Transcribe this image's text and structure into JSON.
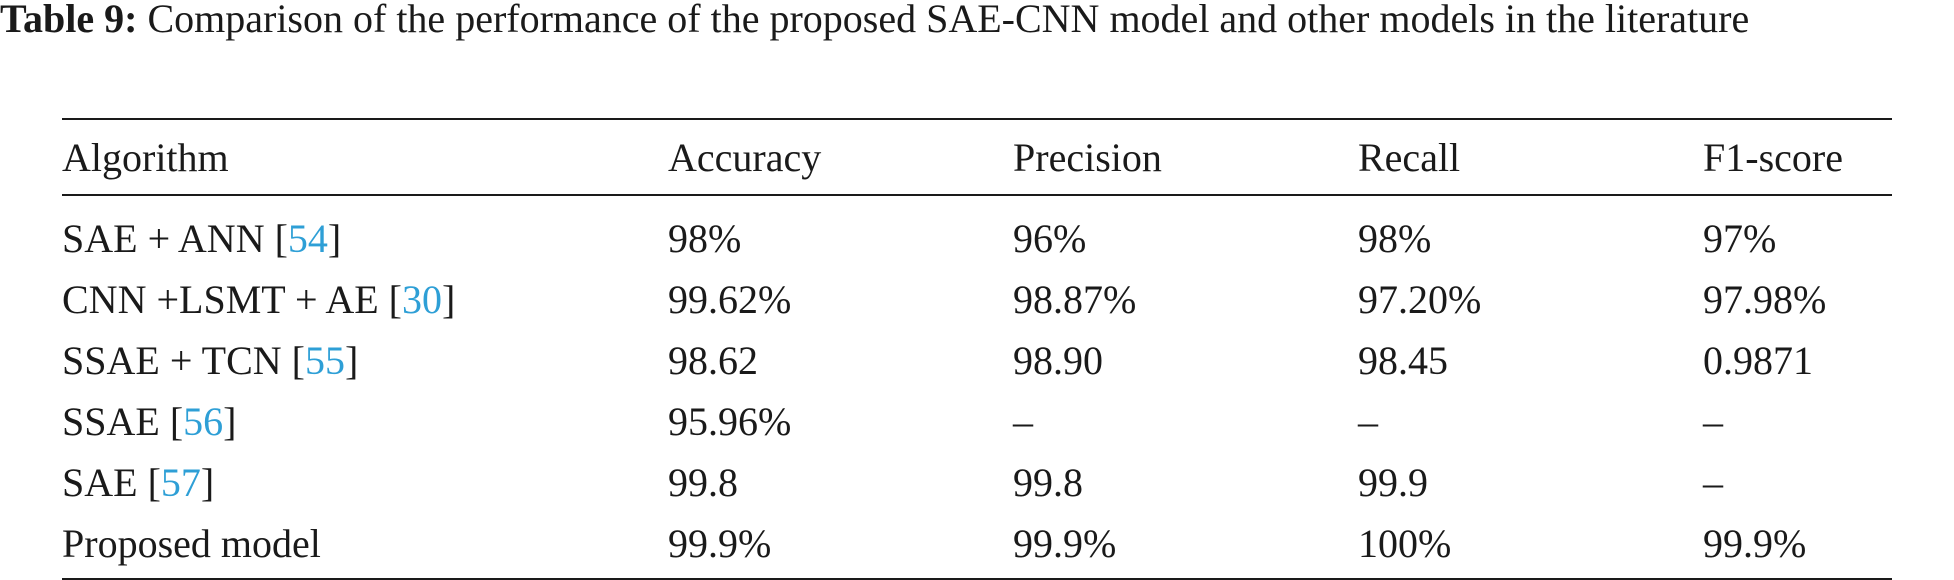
{
  "caption": {
    "label": "Table 9:",
    "text": " Comparison of the performance of the proposed SAE-CNN model and other models in the literature"
  },
  "table": {
    "headers": [
      "Algorithm",
      "Accuracy",
      "Precision",
      "Recall",
      "F1-score"
    ],
    "rows": [
      {
        "name": "SAE + ANN [",
        "ref": "54",
        "close": "]",
        "values": [
          "98%",
          "96%",
          "98%",
          "97%"
        ]
      },
      {
        "name": "CNN +LSMT + AE [",
        "ref": "30",
        "close": "]",
        "values": [
          "99.62%",
          "98.87%",
          "97.20%",
          "97.98%"
        ]
      },
      {
        "name": "SSAE + TCN [",
        "ref": "55",
        "close": "]",
        "values": [
          "98.62",
          "98.90",
          "98.45",
          "0.9871"
        ]
      },
      {
        "name": "SSAE [",
        "ref": "56",
        "close": "]",
        "values": [
          "95.96%",
          "–",
          "–",
          "–"
        ]
      },
      {
        "name": "SAE [",
        "ref": "57",
        "close": "]",
        "values": [
          "99.8",
          "99.8",
          "99.9",
          "–"
        ]
      },
      {
        "name": "Proposed model",
        "ref": "",
        "close": "",
        "values": [
          "99.9%",
          "99.9%",
          "100%",
          "99.9%"
        ]
      }
    ],
    "ref_color": "#2e9fd6"
  }
}
